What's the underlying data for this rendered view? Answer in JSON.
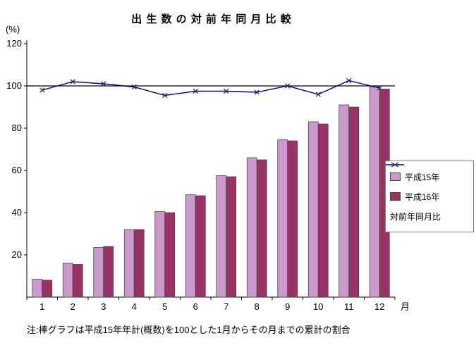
{
  "chart_data": {
    "type": "bar+line",
    "title": "出 生 数 の 対 前 年 同 月 比 較",
    "ylabel": "(%)",
    "xlabel": "月",
    "categories": [
      "1",
      "2",
      "3",
      "4",
      "5",
      "6",
      "7",
      "8",
      "9",
      "10",
      "11",
      "12"
    ],
    "ylim": [
      0,
      120
    ],
    "ytick_labels": [
      "20",
      "40",
      "60",
      "80",
      "100",
      "120"
    ],
    "yticks": [
      20,
      40,
      60,
      80,
      100,
      120
    ],
    "reference_line": 100,
    "series": [
      {
        "name": "平成15年",
        "type": "bar",
        "color": "#cc99cc",
        "values": [
          8.5,
          16,
          23.5,
          32,
          40.5,
          48.5,
          57.5,
          66,
          74.5,
          83,
          91,
          99.5
        ]
      },
      {
        "name": "平成16年",
        "type": "bar",
        "color": "#993366",
        "values": [
          8,
          15.5,
          24,
          32,
          40,
          48,
          57,
          65,
          74,
          82,
          90,
          98.5
        ]
      },
      {
        "name": "対前年同月比",
        "type": "line",
        "color": "#000080",
        "marker": "x",
        "values": [
          98,
          102,
          101,
          99.5,
          95.5,
          97.5,
          97.5,
          97,
          100,
          96,
          102.5,
          99
        ]
      }
    ],
    "note": "注:棒グラフは平成15年年計(概数)を100とした1月からその月までの累計の割合"
  }
}
